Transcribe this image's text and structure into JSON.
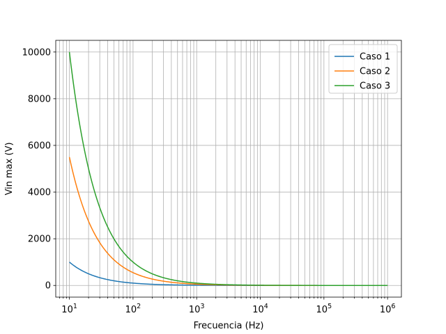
{
  "chart_data": {
    "type": "line",
    "title": "",
    "xlabel": "Frecuencia (Hz)",
    "ylabel": "Vin max (V)",
    "xscale": "log",
    "xlim": [
      6.1,
      1650000
    ],
    "ylim": [
      -500,
      10500
    ],
    "grid": true,
    "grid_which": "both",
    "legend_position": "top-right",
    "x_tick_labels": [
      {
        "value": 10,
        "base": "10",
        "exp": "1"
      },
      {
        "value": 100,
        "base": "10",
        "exp": "2"
      },
      {
        "value": 1000,
        "base": "10",
        "exp": "3"
      },
      {
        "value": 10000,
        "base": "10",
        "exp": "4"
      },
      {
        "value": 100000,
        "base": "10",
        "exp": "5"
      },
      {
        "value": 1000000,
        "base": "10",
        "exp": "6"
      }
    ],
    "y_ticks": [
      0,
      2000,
      4000,
      6000,
      8000,
      10000
    ],
    "y_tick_labels": [
      "0",
      "2000",
      "4000",
      "6000",
      "8000",
      "10000"
    ],
    "x_domain": [
      10,
      1000000
    ],
    "series": [
      {
        "name": "Caso 1",
        "color": "#1f77b4",
        "model": "inverse",
        "k": 10000
      },
      {
        "name": "Caso 2",
        "color": "#ff7f0e",
        "model": "inverse",
        "k": 55000
      },
      {
        "name": "Caso 3",
        "color": "#2ca02c",
        "model": "inverse",
        "k": 100000
      }
    ]
  }
}
